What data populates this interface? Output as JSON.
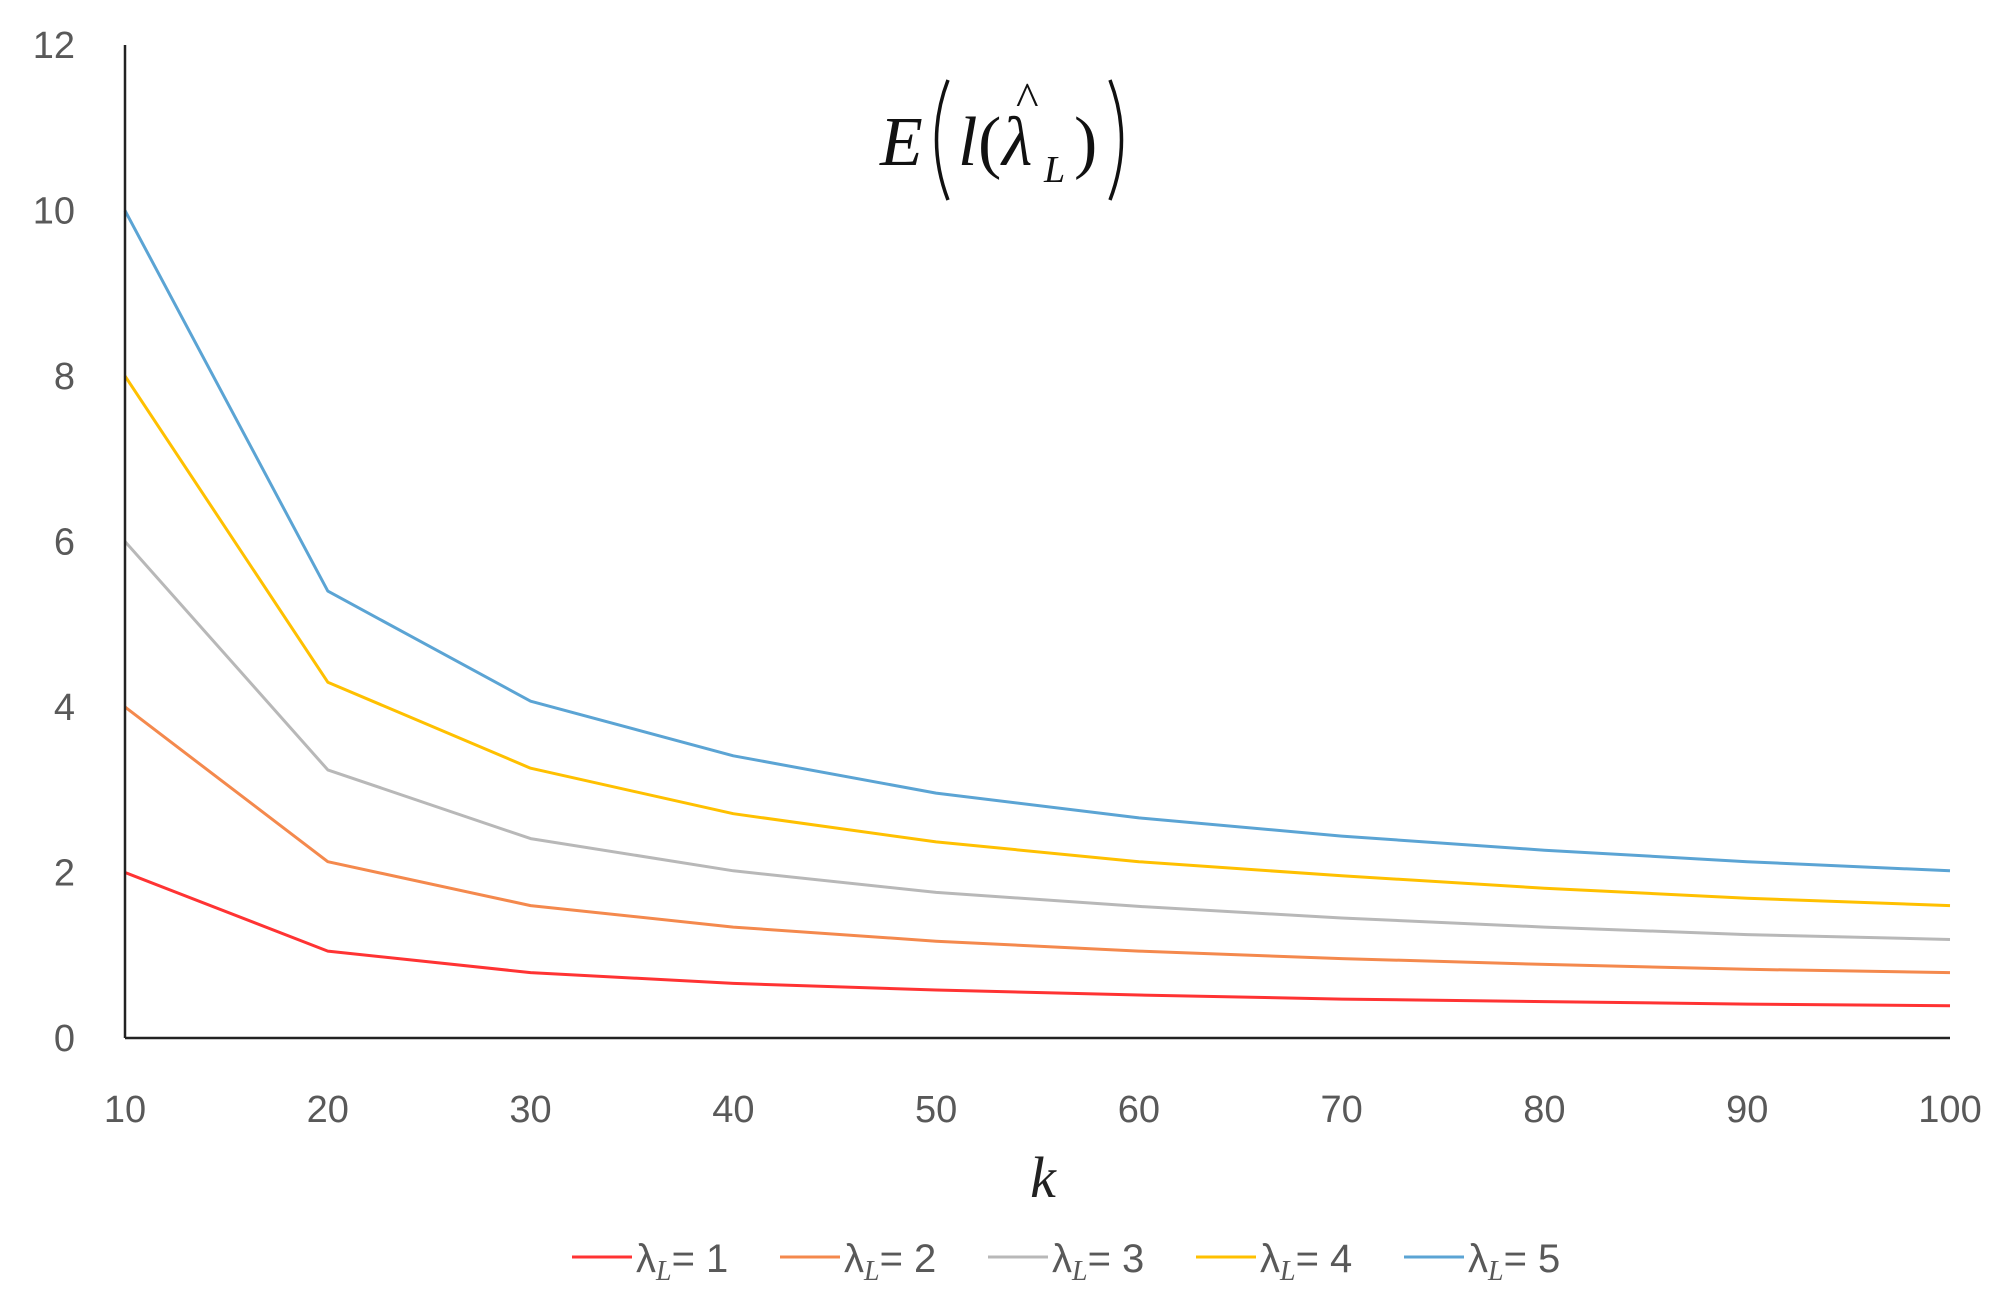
{
  "chart_data": {
    "type": "line",
    "title_parts": {
      "E": "E",
      "l": "l",
      "lambda": "λ",
      "hat": "^",
      "sub": "L"
    },
    "xlabel": "k",
    "ylabel": "",
    "x": [
      10,
      20,
      30,
      40,
      50,
      60,
      70,
      80,
      90,
      100
    ],
    "xlim": [
      10,
      100
    ],
    "ylim": [
      0,
      12
    ],
    "yticks": [
      0,
      2,
      4,
      6,
      8,
      10,
      12
    ],
    "grid": false,
    "legend_position": "bottom",
    "series": [
      {
        "legend_prefix": "λ",
        "legend_sub": "L",
        "legend_suffix": "= 1",
        "color": "#ff3333",
        "values": [
          2.0,
          1.05,
          0.79,
          0.66,
          0.58,
          0.52,
          0.47,
          0.44,
          0.41,
          0.39
        ]
      },
      {
        "legend_prefix": "λ",
        "legend_sub": "L",
        "legend_suffix": "= 2",
        "color": "#f4894d",
        "values": [
          4.0,
          2.13,
          1.6,
          1.34,
          1.17,
          1.05,
          0.96,
          0.89,
          0.83,
          0.79
        ]
      },
      {
        "legend_prefix": "λ",
        "legend_sub": "L",
        "legend_suffix": "= 3",
        "color": "#b8b8b8",
        "values": [
          6.0,
          3.24,
          2.41,
          2.02,
          1.76,
          1.59,
          1.45,
          1.34,
          1.25,
          1.19
        ]
      },
      {
        "legend_prefix": "λ",
        "legend_sub": "L",
        "legend_suffix": "= 4",
        "color": "#ffc000",
        "values": [
          8.0,
          4.3,
          3.26,
          2.71,
          2.37,
          2.13,
          1.96,
          1.81,
          1.69,
          1.6
        ]
      },
      {
        "legend_prefix": "λ",
        "legend_sub": "L",
        "legend_suffix": "= 5",
        "color": "#5ba4d4",
        "values": [
          10.0,
          5.4,
          4.07,
          3.41,
          2.96,
          2.66,
          2.44,
          2.27,
          2.13,
          2.02
        ]
      }
    ]
  }
}
